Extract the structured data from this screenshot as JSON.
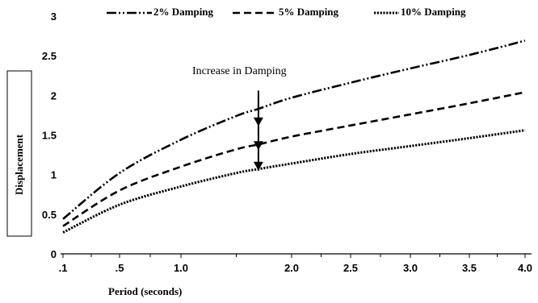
{
  "chart_data": {
    "type": "line",
    "xlabel": "Period (seconds)",
    "ylabel": "Displacement",
    "ylim": [
      0,
      3
    ],
    "x_ticks": [
      ".1",
      ".5",
      "1.0",
      "2.0",
      "2.5",
      "3.0",
      "3.5",
      "4.0"
    ],
    "y_ticks": [
      "0",
      "0.5",
      "1",
      "1.5",
      "2",
      "2.5",
      "3"
    ],
    "y_tick_values": [
      0,
      0.5,
      1,
      1.5,
      2,
      2.5,
      3
    ],
    "grid": false,
    "legend_position": "top",
    "annotation": "Increase in Damping",
    "series": [
      {
        "name": "2% Damping",
        "dash": "dash-dot-dot",
        "points": [
          [
            0.1,
            0.44
          ],
          [
            0.5,
            1.02
          ],
          [
            1.0,
            1.44
          ],
          [
            1.5,
            1.74
          ],
          [
            1.7,
            1.83
          ],
          [
            2.0,
            1.97
          ],
          [
            2.5,
            2.16
          ],
          [
            3.0,
            2.34
          ],
          [
            3.5,
            2.51
          ],
          [
            4.0,
            2.69
          ]
        ]
      },
      {
        "name": "5% Damping",
        "dash": "dash",
        "points": [
          [
            0.1,
            0.35
          ],
          [
            0.5,
            0.8
          ],
          [
            1.0,
            1.1
          ],
          [
            1.5,
            1.32
          ],
          [
            1.7,
            1.38
          ],
          [
            2.0,
            1.48
          ],
          [
            2.5,
            1.62
          ],
          [
            3.0,
            1.76
          ],
          [
            3.5,
            1.9
          ],
          [
            4.0,
            2.04
          ]
        ]
      },
      {
        "name": "10% Damping",
        "dash": "dot",
        "points": [
          [
            0.1,
            0.27
          ],
          [
            0.5,
            0.62
          ],
          [
            1.0,
            0.85
          ],
          [
            1.5,
            1.02
          ],
          [
            1.7,
            1.07
          ],
          [
            2.0,
            1.14
          ],
          [
            2.5,
            1.26
          ],
          [
            3.0,
            1.36
          ],
          [
            3.5,
            1.46
          ],
          [
            4.0,
            1.56
          ]
        ]
      }
    ],
    "arrow": {
      "x": 1.7,
      "from_y": 2.06,
      "to_y": 1.05,
      "marks_y": [
        1.63,
        1.33,
        1.07
      ]
    }
  }
}
